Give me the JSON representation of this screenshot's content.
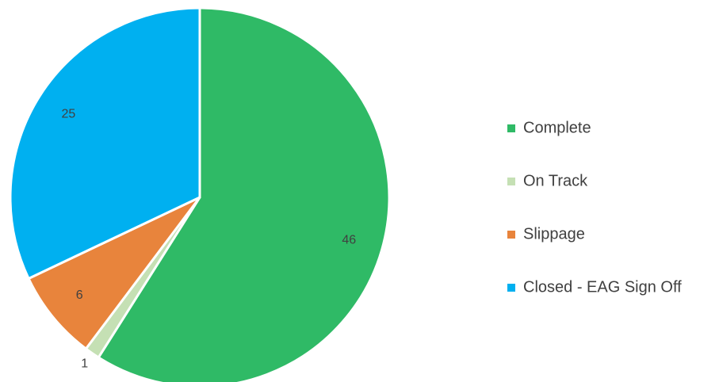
{
  "chart_data": {
    "type": "pie",
    "categories": [
      "Complete",
      "On Track",
      "Slippage",
      "Closed - EAG Sign Off"
    ],
    "values": [
      46,
      1,
      6,
      25
    ],
    "colors": [
      "#2fba66",
      "#c5e0b4",
      "#e8843c",
      "#00b0f0"
    ],
    "legend": "right"
  }
}
